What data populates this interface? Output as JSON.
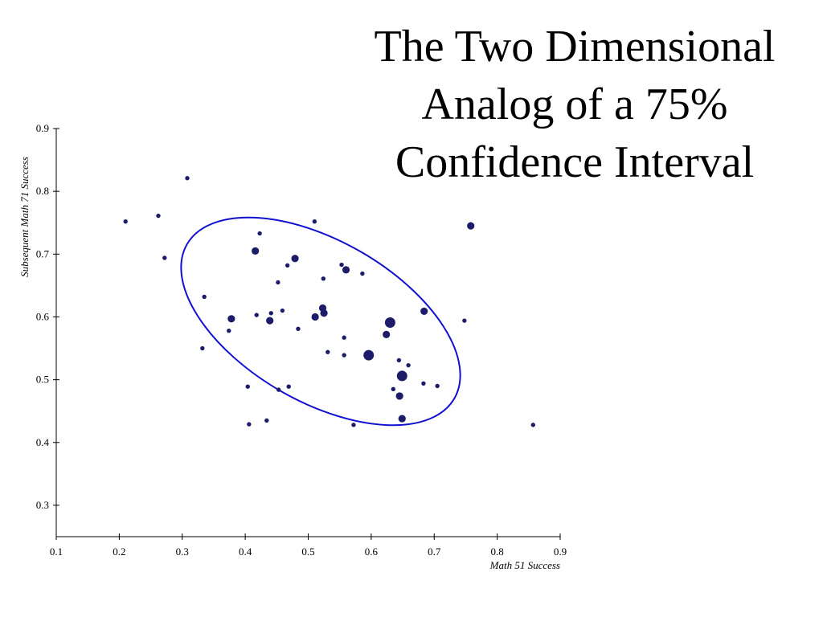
{
  "chart_data": {
    "type": "scatter",
    "title": "The Two Dimensional Analog of a 75% Confidence Interval",
    "x_label": "Math 51 Success",
    "y_label": "Subsequent Math 71 Success",
    "color": "#1c1c6b",
    "xlim": [
      0.1,
      0.9
    ],
    "ylim": [
      0.25,
      0.9
    ],
    "xticks": [
      0.1,
      0.2,
      0.3,
      0.4,
      0.5,
      0.6,
      0.7,
      0.8,
      0.9
    ],
    "yticks": [
      0.3,
      0.4,
      0.5,
      0.6,
      0.7,
      0.8,
      0.9
    ],
    "x": [
      0.308,
      0.21,
      0.262,
      0.272,
      0.423,
      0.51,
      0.758,
      0.416,
      0.479,
      0.467,
      0.553,
      0.56,
      0.586,
      0.524,
      0.452,
      0.335,
      0.523,
      0.525,
      0.684,
      0.378,
      0.418,
      0.441,
      0.459,
      0.439,
      0.511,
      0.748,
      0.63,
      0.624,
      0.374,
      0.484,
      0.557,
      0.332,
      0.531,
      0.557,
      0.596,
      0.644,
      0.659,
      0.649,
      0.683,
      0.705,
      0.404,
      0.469,
      0.453,
      0.635,
      0.645,
      0.649,
      0.434,
      0.406,
      0.572,
      0.857
    ],
    "y": [
      0.821,
      0.752,
      0.761,
      0.694,
      0.733,
      0.752,
      0.745,
      0.705,
      0.693,
      0.682,
      0.683,
      0.675,
      0.669,
      0.661,
      0.655,
      0.632,
      0.614,
      0.606,
      0.609,
      0.597,
      0.603,
      0.606,
      0.61,
      0.594,
      0.6,
      0.594,
      0.591,
      0.572,
      0.578,
      0.581,
      0.567,
      0.55,
      0.544,
      0.539,
      0.539,
      0.531,
      0.523,
      0.506,
      0.494,
      0.49,
      0.489,
      0.489,
      0.484,
      0.485,
      0.474,
      0.438,
      0.435,
      0.429,
      0.428,
      0.428
    ],
    "sizes": [
      1,
      1,
      1,
      1,
      1,
      1,
      2,
      2,
      2,
      1,
      1,
      2,
      1,
      1,
      1,
      1,
      2,
      2,
      2,
      2,
      1,
      1,
      1,
      2,
      2,
      1,
      3,
      2,
      1,
      1,
      1,
      1,
      1,
      1,
      3,
      1,
      1,
      3,
      1,
      1,
      1,
      1,
      1,
      1,
      2,
      2,
      1,
      1,
      1,
      1
    ]
  }
}
